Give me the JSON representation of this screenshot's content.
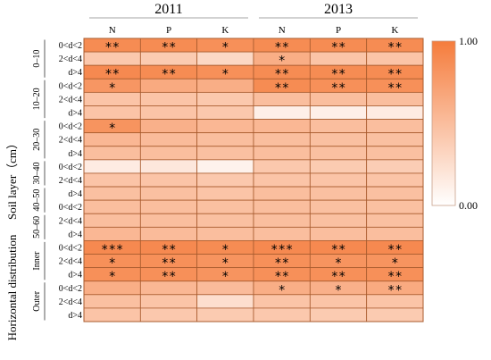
{
  "chart_data": {
    "type": "heatmap",
    "year_groups": [
      {
        "label": "2011",
        "columns": [
          "N",
          "P",
          "K"
        ]
      },
      {
        "label": "2013",
        "columns": [
          "N",
          "P",
          "K"
        ]
      }
    ],
    "y_axis_label_top": "Soil layer（cm）",
    "y_axis_label_bottom": "Horizontal distribution",
    "row_groups": [
      {
        "label": "0–10",
        "rows": [
          "0<d<2",
          "2<d<4",
          "d>4"
        ]
      },
      {
        "label": "10–20",
        "rows": [
          "0<d<2",
          "2<d<4",
          "d>4"
        ]
      },
      {
        "label": "20–30",
        "rows": [
          "0<d<2",
          "2<d<4",
          "d>4"
        ]
      },
      {
        "label": "30–40",
        "rows": [
          "0<d<2",
          "2<d<4"
        ]
      },
      {
        "label": "40–50",
        "rows": [
          "d>4",
          "0<d<2"
        ]
      },
      {
        "label": "50–60",
        "rows": [
          "2<d<4",
          "d>4"
        ]
      },
      {
        "label": "Inner",
        "rows": [
          "0<d<2",
          "2<d<4",
          "d>4"
        ]
      },
      {
        "label": "Outer",
        "rows": [
          "0<d<2",
          "2<d<4",
          "d>4"
        ]
      }
    ],
    "values": [
      [
        0.88,
        0.88,
        0.85,
        0.88,
        0.88,
        0.88
      ],
      [
        0.42,
        0.4,
        0.3,
        0.62,
        0.45,
        0.45
      ],
      [
        0.9,
        0.88,
        0.85,
        0.88,
        0.88,
        0.88
      ],
      [
        0.8,
        0.65,
        0.62,
        0.88,
        0.85,
        0.85
      ],
      [
        0.45,
        0.45,
        0.42,
        0.5,
        0.5,
        0.5
      ],
      [
        0.45,
        0.45,
        0.42,
        0.12,
        0.12,
        0.15
      ],
      [
        0.82,
        0.6,
        0.55,
        0.55,
        0.5,
        0.5
      ],
      [
        0.55,
        0.52,
        0.5,
        0.5,
        0.48,
        0.48
      ],
      [
        0.5,
        0.5,
        0.48,
        0.5,
        0.48,
        0.48
      ],
      [
        0.15,
        0.18,
        0.1,
        0.42,
        0.4,
        0.38
      ],
      [
        0.45,
        0.45,
        0.42,
        0.45,
        0.45,
        0.45
      ],
      [
        0.48,
        0.48,
        0.45,
        0.5,
        0.48,
        0.48
      ],
      [
        0.5,
        0.5,
        0.48,
        0.5,
        0.48,
        0.48
      ],
      [
        0.5,
        0.5,
        0.48,
        0.5,
        0.48,
        0.48
      ],
      [
        0.55,
        0.52,
        0.5,
        0.5,
        0.5,
        0.5
      ],
      [
        0.9,
        0.9,
        0.88,
        0.9,
        0.9,
        0.9
      ],
      [
        0.85,
        0.85,
        0.82,
        0.85,
        0.82,
        0.82
      ],
      [
        0.85,
        0.85,
        0.82,
        0.85,
        0.85,
        0.85
      ],
      [
        0.62,
        0.55,
        0.52,
        0.62,
        0.6,
        0.65
      ],
      [
        0.48,
        0.45,
        0.25,
        0.45,
        0.45,
        0.45
      ],
      [
        0.45,
        0.42,
        0.4,
        0.42,
        0.4,
        0.4
      ]
    ],
    "significance": [
      [
        "**",
        "**",
        "*",
        "**",
        "**",
        "**"
      ],
      [
        "",
        "",
        "",
        "*",
        "",
        ""
      ],
      [
        "**",
        "**",
        "*",
        "**",
        "**",
        "**"
      ],
      [
        "*",
        "",
        "",
        "**",
        "**",
        "**"
      ],
      [
        "",
        "",
        "",
        "",
        "",
        ""
      ],
      [
        "",
        "",
        "",
        "",
        "",
        ""
      ],
      [
        "*",
        "",
        "",
        "",
        "",
        ""
      ],
      [
        "",
        "",
        "",
        "",
        "",
        ""
      ],
      [
        "",
        "",
        "",
        "",
        "",
        ""
      ],
      [
        "",
        "",
        "",
        "",
        "",
        ""
      ],
      [
        "",
        "",
        "",
        "",
        "",
        ""
      ],
      [
        "",
        "",
        "",
        "",
        "",
        ""
      ],
      [
        "",
        "",
        "",
        "",
        "",
        ""
      ],
      [
        "",
        "",
        "",
        "",
        "",
        ""
      ],
      [
        "",
        "",
        "",
        "",
        "",
        ""
      ],
      [
        "***",
        "**",
        "*",
        "***",
        "**",
        "**"
      ],
      [
        "*",
        "**",
        "*",
        "**",
        "*",
        "*"
      ],
      [
        "*",
        "**",
        "*",
        "**",
        "**",
        "**"
      ],
      [
        "",
        "",
        "",
        "*",
        "*",
        "**"
      ],
      [
        "",
        "",
        "",
        "",
        "",
        ""
      ],
      [
        "",
        "",
        "",
        "",
        "",
        ""
      ]
    ],
    "colorbar": {
      "min_label": "0.00",
      "max_label": "1.00",
      "min": 0,
      "max": 1,
      "low_color": "#ffffff",
      "high_color": "#f57c3c"
    },
    "grid_line_color": "#a85b2e"
  }
}
